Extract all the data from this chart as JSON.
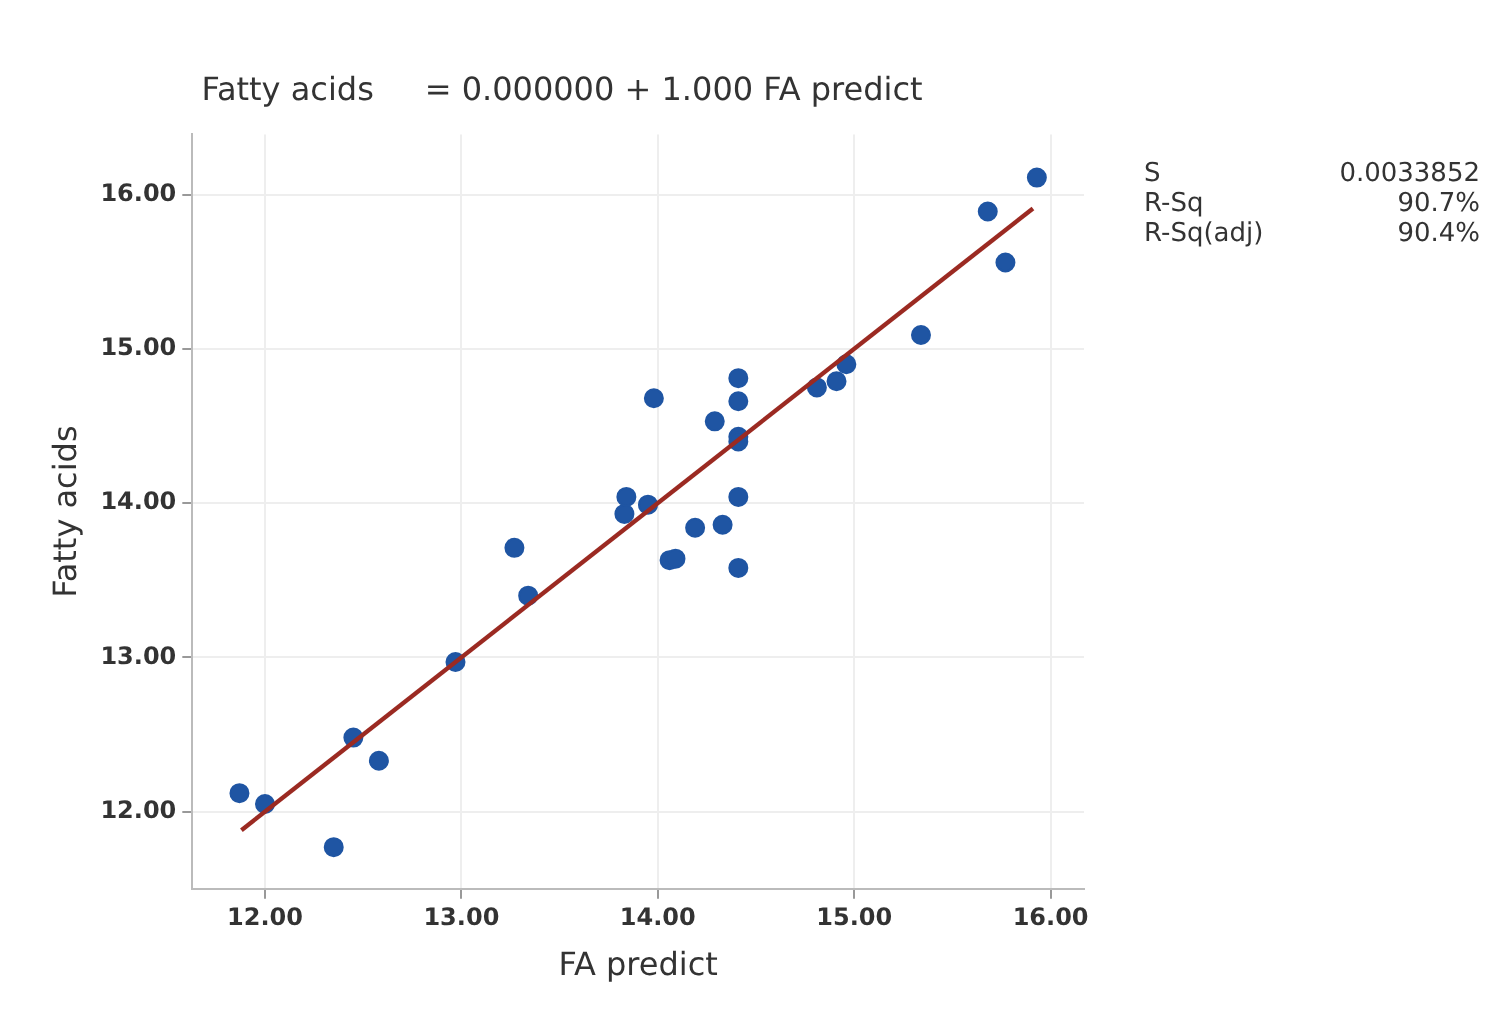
{
  "chart_data": {
    "type": "scatter",
    "title": "Fatty acids     = 0.000000 + 1.000 FA predict",
    "xlabel": "FA predict",
    "ylabel": "Fatty acids",
    "series": [
      {
        "color": "#1f55a3",
        "x": [
          11.87,
          12.0,
          12.35,
          12.45,
          12.58,
          12.97,
          13.27,
          13.34,
          13.83,
          13.84,
          13.95,
          13.98,
          14.06,
          14.09,
          14.19,
          14.29,
          14.33,
          14.41,
          14.41,
          14.41,
          14.41,
          14.41,
          14.41,
          14.81,
          14.91,
          14.96,
          15.34,
          15.68,
          15.77,
          15.93
        ],
        "values": [
          12.12,
          12.05,
          11.77,
          12.48,
          12.33,
          12.97,
          13.71,
          13.4,
          13.93,
          14.04,
          13.99,
          14.68,
          13.63,
          13.64,
          13.84,
          14.53,
          13.86,
          14.04,
          13.58,
          14.81,
          14.66,
          14.43,
          14.4,
          14.75,
          14.79,
          14.9,
          15.09,
          15.89,
          15.56,
          16.11
        ]
      },
      {
        "type": "line",
        "marker": "none",
        "color": "#9b2a22",
        "x": [
          11.88,
          15.91
        ],
        "values": [
          11.88,
          15.91
        ]
      }
    ],
    "marker": "circle",
    "line_style": "solid",
    "grid": true,
    "legend": false,
    "xlim": [
      11.63,
      16.17
    ],
    "ylim": [
      11.5,
      16.39
    ],
    "xticks": [
      {
        "value": 12,
        "label": "12.00"
      },
      {
        "value": 13,
        "label": "13.00"
      },
      {
        "value": 14,
        "label": "14.00"
      },
      {
        "value": 15,
        "label": "15.00"
      },
      {
        "value": 16,
        "label": "16.00"
      }
    ],
    "yticks": [
      {
        "value": 12,
        "label": "12.00"
      },
      {
        "value": 13,
        "label": "13.00"
      },
      {
        "value": 14,
        "label": "14.00"
      },
      {
        "value": 15,
        "label": "15.00"
      },
      {
        "value": 16,
        "label": "16.00"
      }
    ],
    "annotations": [
      "S",
      "0.0033852",
      "R-Sq",
      "90.7%",
      "R-Sq(adj)",
      "90.4%"
    ]
  }
}
